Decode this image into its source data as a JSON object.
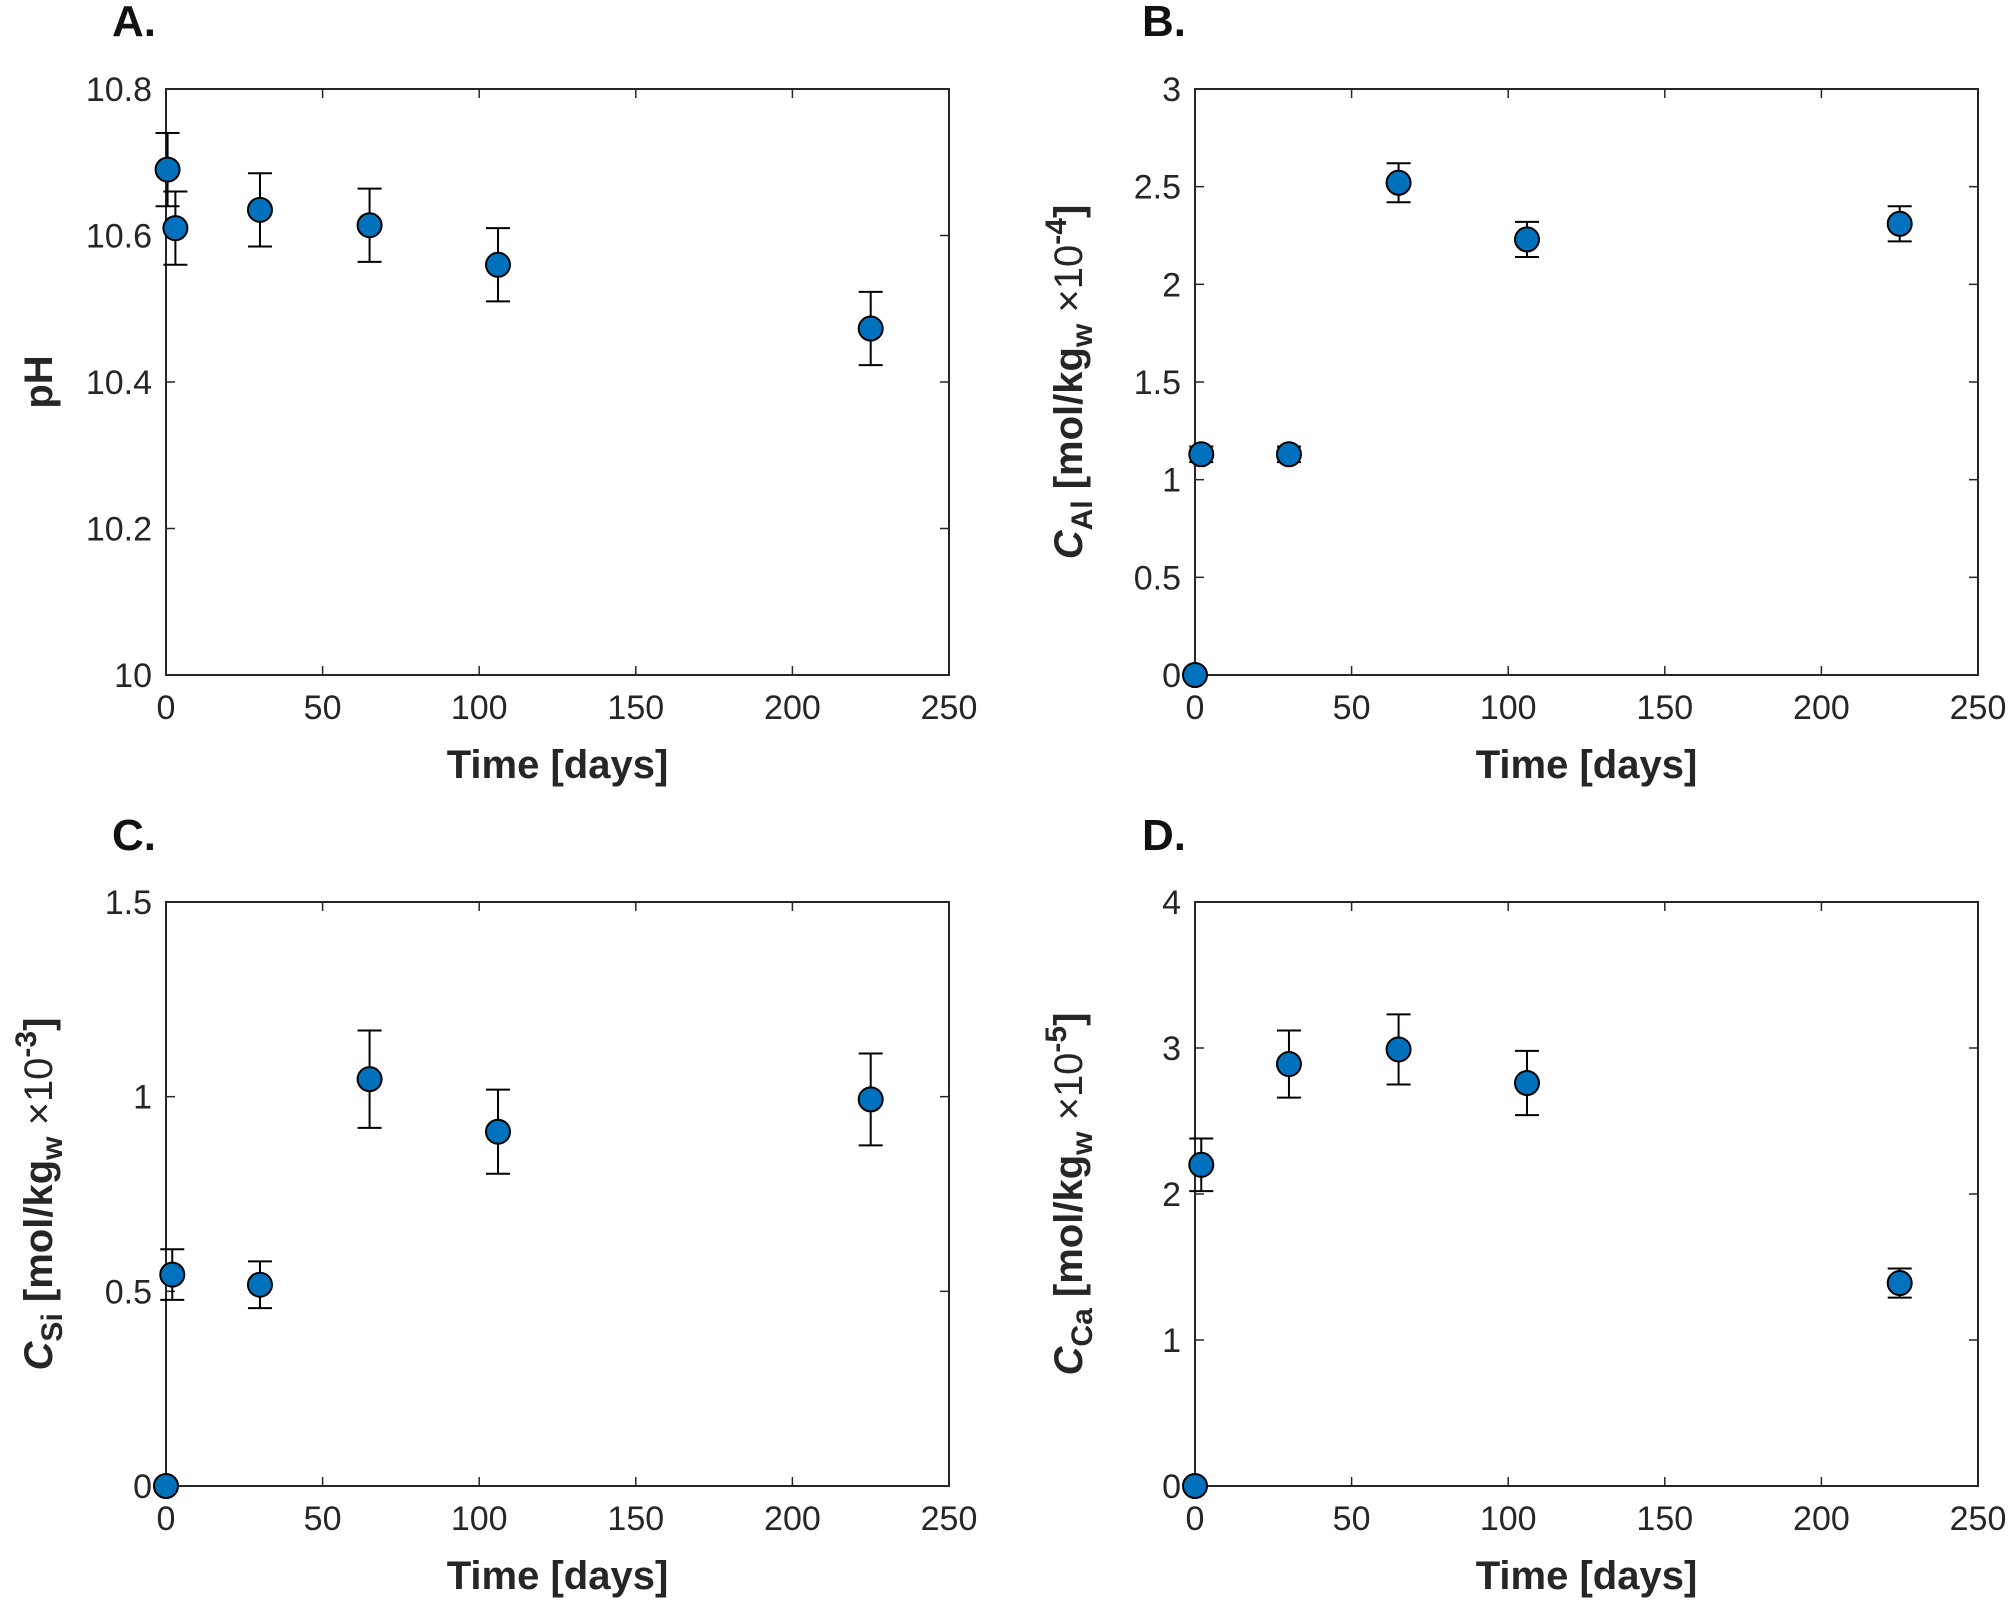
{
  "colors": {
    "marker": "#0072BD",
    "axis": "#262626",
    "background": "#ffffff"
  },
  "chart_data": [
    {
      "type": "scatter",
      "panel": "A.",
      "xlabel": "Time [days]",
      "ylabel": "pH",
      "xlim": [
        0,
        250
      ],
      "ylim": [
        10,
        10.8
      ],
      "xticks": [
        0,
        50,
        100,
        150,
        200,
        250
      ],
      "xtick_labels": [
        "0",
        "50",
        "100",
        "150",
        "200",
        "250"
      ],
      "yticks": [
        10,
        10.2,
        10.4,
        10.6,
        10.8
      ],
      "ytick_labels": [
        "10",
        "10.2",
        "10.4",
        "10.6",
        "10.8"
      ],
      "x": [
        0.5,
        3,
        30,
        65,
        106,
        225
      ],
      "y": [
        10.69,
        10.61,
        10.635,
        10.614,
        10.56,
        10.473
      ],
      "yerr": [
        0.05,
        0.05,
        0.05,
        0.05,
        0.05,
        0.05
      ]
    },
    {
      "type": "scatter",
      "panel": "B.",
      "xlabel": "Time [days]",
      "ylabel": "C_Al [mol/kg_w ×10^-4]",
      "ylabel_parts": {
        "symbol": "C",
        "sub": "Al",
        "unit_open": "[mol/kg",
        "unit_sub": "w",
        "unit_mid": "×10",
        "unit_sup": "-4",
        "unit_close": "]"
      },
      "xlim": [
        0,
        250
      ],
      "ylim": [
        0,
        3
      ],
      "xticks": [
        0,
        50,
        100,
        150,
        200,
        250
      ],
      "xtick_labels": [
        "0",
        "50",
        "100",
        "150",
        "200",
        "250"
      ],
      "yticks": [
        0,
        0.5,
        1,
        1.5,
        2,
        2.5,
        3
      ],
      "ytick_labels": [
        "0",
        "0.5",
        "1",
        "1.5",
        "2",
        "2.5",
        "3"
      ],
      "x": [
        0,
        2,
        30,
        65,
        106,
        225
      ],
      "y": [
        0,
        1.13,
        1.13,
        2.52,
        2.23,
        2.31
      ],
      "yerr": [
        0,
        0.04,
        0.04,
        0.1,
        0.09,
        0.09
      ]
    },
    {
      "type": "scatter",
      "panel": "C.",
      "xlabel": "Time [days]",
      "ylabel": "C_Si [mol/kg_w ×10^-3]",
      "ylabel_parts": {
        "symbol": "C",
        "sub": "Si",
        "unit_open": "[mol/kg",
        "unit_sub": "w",
        "unit_mid": "×10",
        "unit_sup": "-3",
        "unit_close": "]"
      },
      "xlim": [
        0,
        250
      ],
      "ylim": [
        0,
        1.5
      ],
      "xticks": [
        0,
        50,
        100,
        150,
        200,
        250
      ],
      "xtick_labels": [
        "0",
        "50",
        "100",
        "150",
        "200",
        "250"
      ],
      "yticks": [
        0,
        0.5,
        1,
        1.5
      ],
      "ytick_labels": [
        "0",
        "0.5",
        "1",
        "1.5"
      ],
      "x": [
        0,
        2,
        30,
        65,
        106,
        225
      ],
      "y": [
        0,
        0.543,
        0.517,
        1.045,
        0.91,
        0.993
      ],
      "yerr": [
        0,
        0.065,
        0.06,
        0.125,
        0.108,
        0.118
      ]
    },
    {
      "type": "scatter",
      "panel": "D.",
      "xlabel": "Time [days]",
      "ylabel": "C_Ca [mol/kg_w ×10^-5]",
      "ylabel_parts": {
        "symbol": "C",
        "sub": "Ca",
        "unit_open": "[mol/kg",
        "unit_sub": "w",
        "unit_mid": "×10",
        "unit_sup": "-5",
        "unit_close": "]"
      },
      "xlim": [
        0,
        250
      ],
      "ylim": [
        0,
        4
      ],
      "xticks": [
        0,
        50,
        100,
        150,
        200,
        250
      ],
      "xtick_labels": [
        "0",
        "50",
        "100",
        "150",
        "200",
        "250"
      ],
      "yticks": [
        0,
        1,
        2,
        3,
        4
      ],
      "ytick_labels": [
        "0",
        "1",
        "2",
        "3",
        "4"
      ],
      "x": [
        0,
        2,
        30,
        65,
        106,
        225
      ],
      "y": [
        0,
        2.2,
        2.89,
        2.99,
        2.76,
        1.39
      ],
      "yerr": [
        0,
        0.18,
        0.23,
        0.24,
        0.22,
        0.1
      ]
    }
  ]
}
